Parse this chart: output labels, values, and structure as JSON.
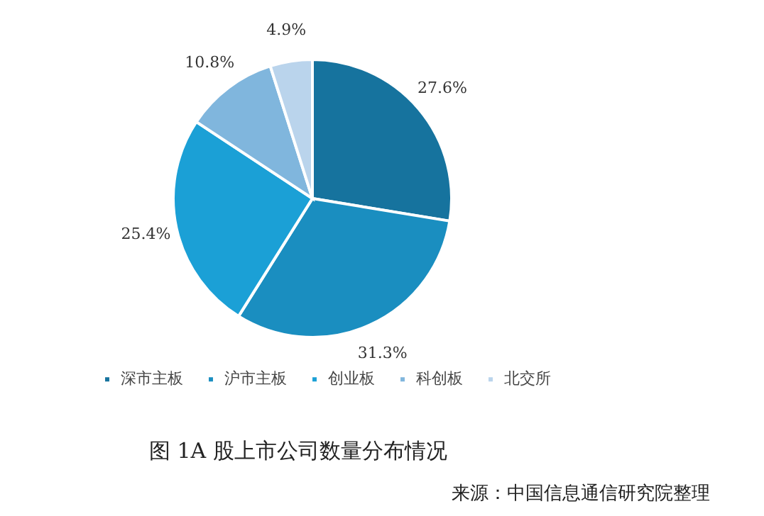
{
  "chart_data": {
    "type": "pie",
    "title": "图 1A 股上市公司数量分布情况",
    "categories": [
      "深市主板",
      "沪市主板",
      "创业板",
      "科创板",
      "北交所"
    ],
    "values": [
      27.6,
      31.3,
      25.4,
      10.8,
      4.9
    ],
    "colors": [
      "#16739e",
      "#1a8ec0",
      "#1ba0d6",
      "#80b6dd",
      "#bad4ec"
    ],
    "value_labels": [
      "27.6%",
      "31.3%",
      "25.4%",
      "10.8%",
      "4.9%"
    ],
    "legend": "bottom",
    "annotations": [
      "来源：中国信息通信研究院整理"
    ]
  }
}
